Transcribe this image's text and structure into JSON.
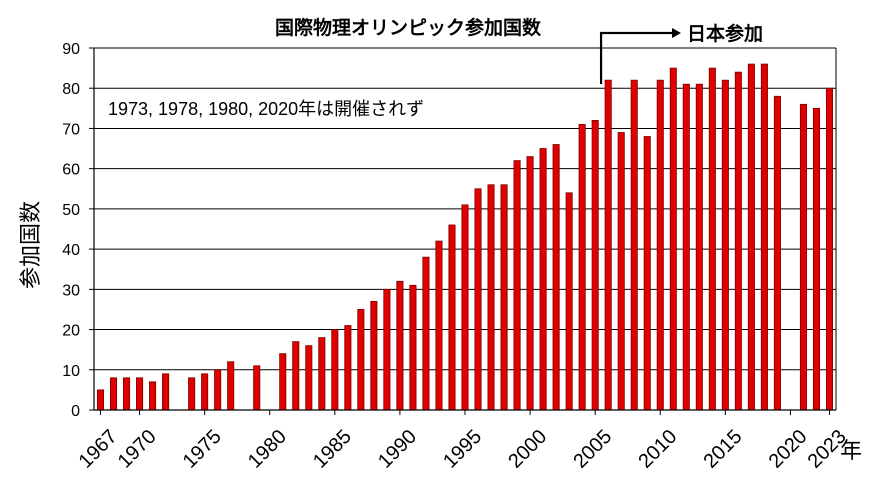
{
  "chart_data": {
    "type": "bar",
    "title": "国際物理オリンピック参加国数",
    "ylabel": "参加国数",
    "xlabel": "年",
    "ylim": [
      0,
      90
    ],
    "yticks": [
      0,
      10,
      20,
      30,
      40,
      50,
      60,
      70,
      80,
      90
    ],
    "xticks": [
      1967,
      1970,
      1975,
      1980,
      1985,
      1990,
      1995,
      2000,
      2005,
      2010,
      2015,
      2020,
      2023
    ],
    "grid": true,
    "legend": "none",
    "bar_color": "#e00000",
    "bar_edge_color": "#7a0000",
    "annotation_text": "1973, 1978, 1980, 2020年は開催されず",
    "callout": {
      "label": "日本参加",
      "year": 2006
    },
    "x": [
      1967,
      1968,
      1969,
      1970,
      1971,
      1972,
      1973,
      1974,
      1975,
      1976,
      1977,
      1978,
      1979,
      1980,
      1981,
      1982,
      1983,
      1984,
      1985,
      1986,
      1987,
      1988,
      1989,
      1990,
      1991,
      1992,
      1993,
      1994,
      1995,
      1996,
      1997,
      1998,
      1999,
      2000,
      2001,
      2002,
      2003,
      2004,
      2005,
      2006,
      2007,
      2008,
      2009,
      2010,
      2011,
      2012,
      2013,
      2014,
      2015,
      2016,
      2017,
      2018,
      2019,
      2020,
      2021,
      2022,
      2023
    ],
    "values": [
      5,
      8,
      8,
      8,
      7,
      9,
      null,
      8,
      9,
      10,
      12,
      null,
      11,
      null,
      14,
      17,
      16,
      18,
      20,
      21,
      25,
      27,
      30,
      32,
      31,
      38,
      42,
      46,
      51,
      55,
      56,
      56,
      62,
      63,
      65,
      66,
      54,
      71,
      72,
      82,
      69,
      82,
      68,
      82,
      85,
      81,
      81,
      85,
      82,
      84,
      86,
      86,
      78,
      null,
      76,
      75,
      80
    ]
  }
}
